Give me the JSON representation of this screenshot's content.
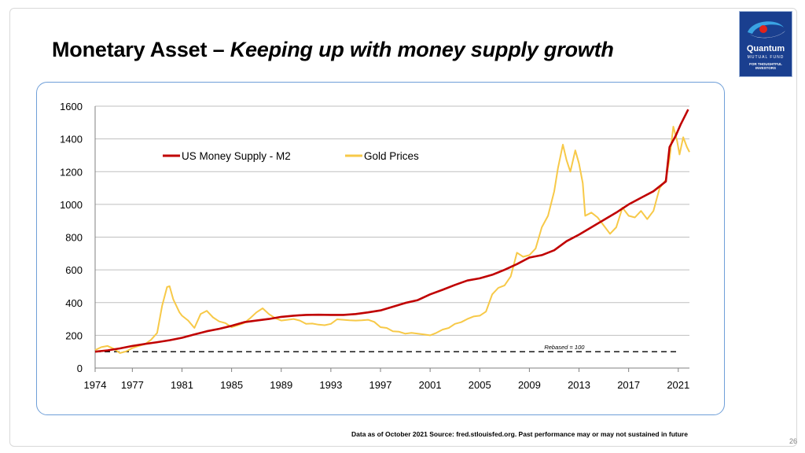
{
  "slide": {
    "title_main": "Monetary Asset – ",
    "title_italic": "Keeping up with money supply growth",
    "footer_note": "Data as of October 2021 Source: fred.stlouisfed.org. Past performance may or may not sustained in future",
    "page_number": "26"
  },
  "logo": {
    "name": "Quantum",
    "sub": "MUTUAL FUND",
    "tagline_line1": "FOR THOUGHTFUL",
    "tagline_line2": "INVESTORS",
    "colors": {
      "background": "#1a3f8f",
      "accent": "#e2231a",
      "swirl": "#3aa3e3"
    }
  },
  "chart_data": {
    "type": "line",
    "xlim": [
      1974,
      2021.9
    ],
    "ylim": [
      0,
      1600
    ],
    "x_ticks": [
      "1974",
      "1977",
      "1981",
      "1985",
      "1989",
      "1993",
      "1997",
      "2001",
      "2005",
      "2009",
      "2013",
      "2017",
      "2021"
    ],
    "y_ticks": [
      "0",
      "200",
      "400",
      "600",
      "800",
      "1000",
      "1200",
      "1400",
      "1600"
    ],
    "grid": "horizontal",
    "legend_position": "top-left",
    "series": [
      {
        "name": "US Money Supply - M2",
        "color": "#c00000",
        "points": [
          [
            1974,
            100
          ],
          [
            1975,
            108
          ],
          [
            1976,
            120
          ],
          [
            1977,
            135
          ],
          [
            1978,
            147
          ],
          [
            1979,
            158
          ],
          [
            1980,
            170
          ],
          [
            1981,
            185
          ],
          [
            1982,
            205
          ],
          [
            1983,
            225
          ],
          [
            1984,
            240
          ],
          [
            1985,
            258
          ],
          [
            1986,
            280
          ],
          [
            1987,
            290
          ],
          [
            1988,
            300
          ],
          [
            1989,
            313
          ],
          [
            1990,
            320
          ],
          [
            1991,
            325
          ],
          [
            1992,
            326
          ],
          [
            1993,
            325
          ],
          [
            1994,
            325
          ],
          [
            1995,
            330
          ],
          [
            1996,
            340
          ],
          [
            1997,
            352
          ],
          [
            1998,
            375
          ],
          [
            1999,
            398
          ],
          [
            2000,
            415
          ],
          [
            2001,
            450
          ],
          [
            2002,
            478
          ],
          [
            2003,
            508
          ],
          [
            2004,
            535
          ],
          [
            2005,
            548
          ],
          [
            2006,
            570
          ],
          [
            2007,
            600
          ],
          [
            2008,
            635
          ],
          [
            2009,
            675
          ],
          [
            2010,
            690
          ],
          [
            2011,
            720
          ],
          [
            2012,
            775
          ],
          [
            2013,
            815
          ],
          [
            2014,
            860
          ],
          [
            2015,
            905
          ],
          [
            2016,
            950
          ],
          [
            2017,
            1000
          ],
          [
            2018,
            1040
          ],
          [
            2019,
            1080
          ],
          [
            2020,
            1140
          ],
          [
            2020.3,
            1350
          ],
          [
            2020.8,
            1420
          ],
          [
            2021.2,
            1490
          ],
          [
            2021.6,
            1550
          ],
          [
            2021.8,
            1580
          ]
        ]
      },
      {
        "name": "Gold Prices",
        "color": "#f7c948",
        "points": [
          [
            1974,
            110
          ],
          [
            1974.5,
            128
          ],
          [
            1975,
            135
          ],
          [
            1975.5,
            118
          ],
          [
            1976,
            92
          ],
          [
            1976.5,
            102
          ],
          [
            1977,
            122
          ],
          [
            1977.5,
            135
          ],
          [
            1978,
            145
          ],
          [
            1978.5,
            172
          ],
          [
            1979,
            215
          ],
          [
            1979.4,
            380
          ],
          [
            1979.8,
            495
          ],
          [
            1980,
            500
          ],
          [
            1980.3,
            420
          ],
          [
            1980.8,
            340
          ],
          [
            1981,
            320
          ],
          [
            1981.5,
            290
          ],
          [
            1982,
            245
          ],
          [
            1982.5,
            330
          ],
          [
            1983,
            350
          ],
          [
            1983.5,
            310
          ],
          [
            1984,
            285
          ],
          [
            1984.5,
            275
          ],
          [
            1985,
            250
          ],
          [
            1985.5,
            262
          ],
          [
            1986,
            275
          ],
          [
            1986.5,
            305
          ],
          [
            1987,
            340
          ],
          [
            1987.5,
            365
          ],
          [
            1988,
            330
          ],
          [
            1988.5,
            305
          ],
          [
            1989,
            290
          ],
          [
            1989.5,
            295
          ],
          [
            1990,
            300
          ],
          [
            1990.5,
            290
          ],
          [
            1991,
            270
          ],
          [
            1991.5,
            272
          ],
          [
            1992,
            265
          ],
          [
            1992.5,
            262
          ],
          [
            1993,
            270
          ],
          [
            1993.5,
            298
          ],
          [
            1994,
            295
          ],
          [
            1994.5,
            292
          ],
          [
            1995,
            290
          ],
          [
            1995.5,
            292
          ],
          [
            1996,
            295
          ],
          [
            1996.5,
            282
          ],
          [
            1997,
            250
          ],
          [
            1997.5,
            245
          ],
          [
            1998,
            225
          ],
          [
            1998.5,
            222
          ],
          [
            1999,
            210
          ],
          [
            1999.5,
            215
          ],
          [
            2000,
            210
          ],
          [
            2000.5,
            205
          ],
          [
            2001,
            200
          ],
          [
            2001.5,
            215
          ],
          [
            2002,
            235
          ],
          [
            2002.5,
            245
          ],
          [
            2003,
            270
          ],
          [
            2003.5,
            280
          ],
          [
            2004,
            300
          ],
          [
            2004.5,
            315
          ],
          [
            2005,
            320
          ],
          [
            2005.5,
            345
          ],
          [
            2006,
            450
          ],
          [
            2006.5,
            490
          ],
          [
            2007,
            505
          ],
          [
            2007.5,
            560
          ],
          [
            2008,
            705
          ],
          [
            2008.5,
            680
          ],
          [
            2009,
            690
          ],
          [
            2009.5,
            730
          ],
          [
            2010,
            860
          ],
          [
            2010.5,
            930
          ],
          [
            2011,
            1080
          ],
          [
            2011.3,
            1220
          ],
          [
            2011.7,
            1365
          ],
          [
            2012,
            1270
          ],
          [
            2012.3,
            1200
          ],
          [
            2012.7,
            1330
          ],
          [
            2013,
            1250
          ],
          [
            2013.3,
            1130
          ],
          [
            2013.5,
            930
          ],
          [
            2014,
            950
          ],
          [
            2014.5,
            920
          ],
          [
            2015,
            870
          ],
          [
            2015.5,
            820
          ],
          [
            2016,
            860
          ],
          [
            2016.5,
            980
          ],
          [
            2017,
            930
          ],
          [
            2017.5,
            920
          ],
          [
            2018,
            960
          ],
          [
            2018.5,
            910
          ],
          [
            2019,
            960
          ],
          [
            2019.5,
            1100
          ],
          [
            2020,
            1150
          ],
          [
            2020.3,
            1280
          ],
          [
            2020.6,
            1475
          ],
          [
            2020.9,
            1390
          ],
          [
            2021.1,
            1305
          ],
          [
            2021.4,
            1410
          ],
          [
            2021.7,
            1350
          ],
          [
            2021.9,
            1320
          ]
        ]
      }
    ],
    "reference_line": {
      "value": 100,
      "label": "Rebased = 100",
      "color": "#000000"
    }
  }
}
